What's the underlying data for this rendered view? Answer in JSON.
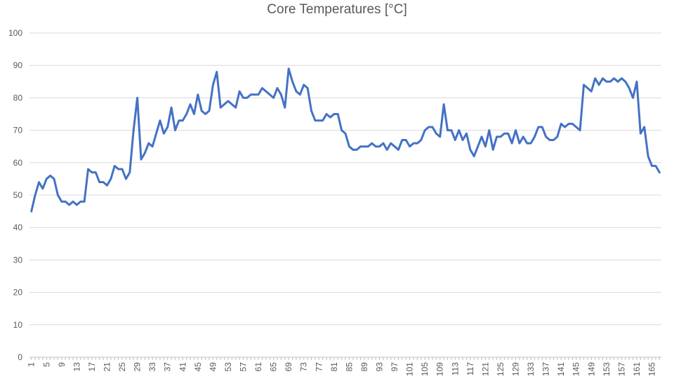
{
  "chart_data": {
    "type": "line",
    "title": "Core Temperatures [°C]",
    "xlabel": "",
    "ylabel": "",
    "ylim": [
      0,
      100
    ],
    "ytick_step": 10,
    "grid": true,
    "legend": "none",
    "x_tick_every": 4,
    "series": [
      {
        "color": "#4472C4",
        "values": [
          45,
          50,
          54,
          52,
          55,
          56,
          55,
          50,
          48,
          48,
          47,
          48,
          47,
          48,
          48,
          58,
          57,
          57,
          54,
          54,
          53,
          55,
          59,
          58,
          58,
          55,
          57,
          70,
          80,
          61,
          63,
          66,
          65,
          69,
          73,
          69,
          71,
          77,
          70,
          73,
          73,
          75,
          78,
          75,
          81,
          76,
          75,
          76,
          84,
          88,
          77,
          78,
          79,
          78,
          77,
          82,
          80,
          80,
          81,
          81,
          81,
          83,
          82,
          81,
          80,
          83,
          81,
          77,
          89,
          85,
          82,
          81,
          84,
          83,
          76,
          73,
          73,
          73,
          75,
          74,
          75,
          75,
          70,
          69,
          65,
          64,
          64,
          65,
          65,
          65,
          66,
          65,
          65,
          66,
          64,
          66,
          65,
          64,
          67,
          67,
          65,
          66,
          66,
          67,
          70,
          71,
          71,
          69,
          68,
          78,
          70,
          70,
          67,
          70,
          67,
          69,
          64,
          62,
          65,
          68,
          65,
          70,
          64,
          68,
          68,
          69,
          69,
          66,
          70,
          66,
          68,
          66,
          66,
          68,
          71,
          71,
          68,
          67,
          67,
          68,
          72,
          71,
          72,
          72,
          71,
          70,
          84,
          83,
          82,
          86,
          84,
          86,
          85,
          85,
          86,
          85,
          86,
          85,
          83,
          80,
          85,
          69,
          71,
          62,
          59,
          59,
          57
        ]
      }
    ]
  }
}
